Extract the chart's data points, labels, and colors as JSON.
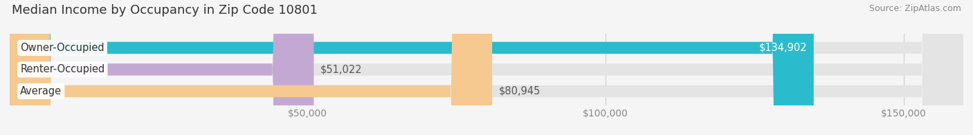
{
  "title": "Median Income by Occupancy in Zip Code 10801",
  "source": "Source: ZipAtlas.com",
  "categories": [
    "Owner-Occupied",
    "Renter-Occupied",
    "Average"
  ],
  "values": [
    134902,
    51022,
    80945
  ],
  "bar_colors": [
    "#2abccc",
    "#c4a8d4",
    "#f5c990"
  ],
  "label_colors": [
    "#ffffff",
    "#555555",
    "#555555"
  ],
  "value_labels": [
    "$134,902",
    "$51,022",
    "$80,945"
  ],
  "value_inside": [
    true,
    false,
    false
  ],
  "xlim": [
    0,
    160000
  ],
  "xticks": [
    50000,
    100000,
    150000
  ],
  "xtick_labels": [
    "$50,000",
    "$100,000",
    "$150,000"
  ],
  "bar_height": 0.55,
  "background_color": "#f5f5f5",
  "bar_bg_color": "#e4e4e4",
  "title_fontsize": 13,
  "tick_fontsize": 10,
  "label_fontsize": 10.5,
  "value_fontsize": 10.5
}
